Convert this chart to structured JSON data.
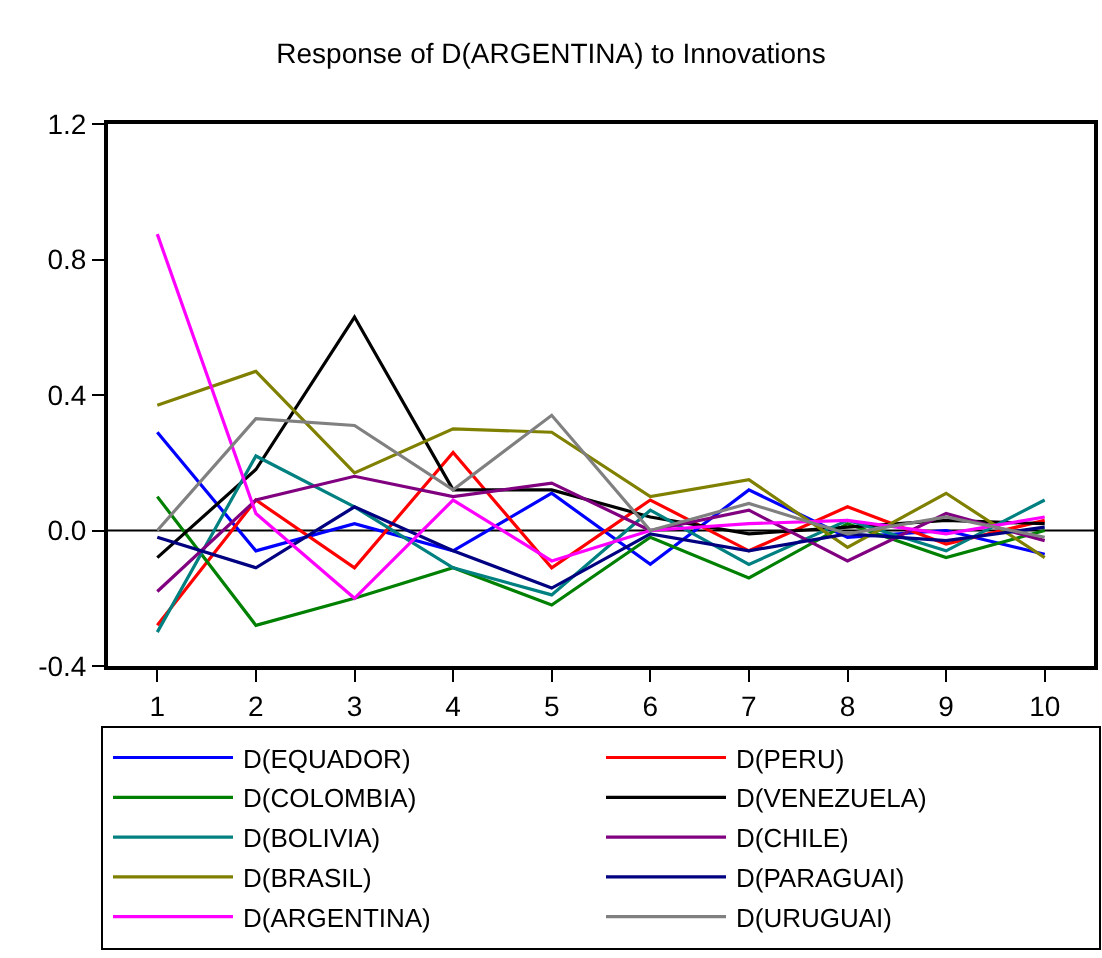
{
  "chart_data": {
    "type": "line",
    "title": "Response of D(ARGENTINA) to Innovations",
    "categories": [
      "1",
      "2",
      "3",
      "4",
      "5",
      "6",
      "7",
      "8",
      "9",
      "10"
    ],
    "ylim": [
      -0.4,
      1.2
    ],
    "yticks": [
      {
        "value": -0.4,
        "label": "-0.4"
      },
      {
        "value": 0,
        "label": "0.0"
      },
      {
        "value": 0.4,
        "label": "0.4"
      },
      {
        "value": 0.8,
        "label": "0.8"
      },
      {
        "value": 1.2,
        "label": "1.2"
      }
    ],
    "grid": false,
    "legend": "bottom",
    "marker": "none",
    "line_style": "solid",
    "ref_lines": [
      {
        "axis": "y",
        "value": 0,
        "color": "#000000"
      }
    ],
    "series": [
      {
        "name": "D(EQUADOR)",
        "color": "#0000ff",
        "values": [
          0.29,
          -0.06,
          0.02,
          -0.06,
          0.11,
          -0.1,
          0.12,
          -0.02,
          0.0,
          -0.07
        ]
      },
      {
        "name": "D(PERU)",
        "color": "#ff0000",
        "values": [
          -0.28,
          0.09,
          -0.11,
          0.23,
          -0.11,
          0.09,
          -0.06,
          0.07,
          -0.04,
          0.03
        ]
      },
      {
        "name": "D(COLOMBIA)",
        "color": "#008000",
        "values": [
          0.1,
          -0.28,
          -0.2,
          -0.11,
          -0.22,
          -0.02,
          -0.14,
          0.02,
          -0.08,
          0.0
        ]
      },
      {
        "name": "D(VENEZUELA)",
        "color": "#000000",
        "values": [
          -0.08,
          0.18,
          0.63,
          0.12,
          0.12,
          0.04,
          -0.01,
          0.01,
          0.03,
          0.02
        ]
      },
      {
        "name": "D(BOLIVIA)",
        "color": "#008080",
        "values": [
          -0.3,
          0.22,
          0.07,
          -0.11,
          -0.19,
          0.06,
          -0.1,
          0.03,
          -0.06,
          0.09
        ]
      },
      {
        "name": "D(CHILE)",
        "color": "#800080",
        "values": [
          -0.18,
          0.09,
          0.16,
          0.1,
          0.14,
          0.0,
          0.06,
          -0.09,
          0.05,
          -0.03
        ]
      },
      {
        "name": "D(BRASIL)",
        "color": "#808000",
        "values": [
          0.37,
          0.47,
          0.17,
          0.3,
          0.29,
          0.1,
          0.15,
          -0.05,
          0.11,
          -0.08
        ]
      },
      {
        "name": "D(PARAGUAI)",
        "color": "#000080",
        "values": [
          -0.02,
          -0.11,
          0.07,
          -0.06,
          -0.17,
          -0.01,
          -0.06,
          -0.01,
          -0.03,
          0.01
        ]
      },
      {
        "name": "D(ARGENTINA)",
        "color": "#ff00ff",
        "values": [
          0.875,
          0.05,
          -0.2,
          0.09,
          -0.09,
          0.0,
          0.02,
          0.03,
          -0.01,
          0.04
        ]
      },
      {
        "name": "D(URUGUAI)",
        "color": "#808080",
        "values": [
          0.0,
          0.33,
          0.31,
          0.12,
          0.34,
          0.0,
          0.08,
          -0.01,
          0.04,
          -0.02
        ]
      }
    ]
  }
}
